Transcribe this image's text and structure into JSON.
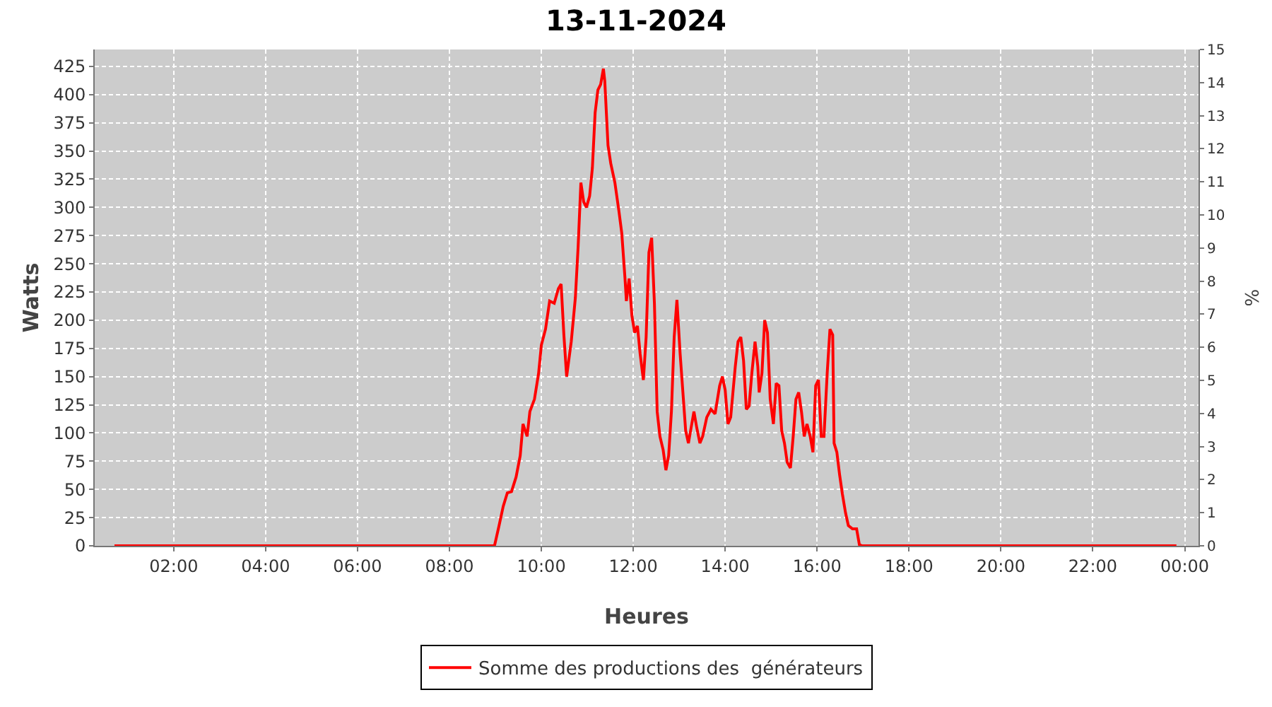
{
  "chart_data": {
    "type": "line",
    "title": "13-11-2024",
    "xlabel": "Heures",
    "ylabel": "Watts",
    "y2label": "%",
    "x": [
      0.71,
      8.98,
      9.08,
      9.17,
      9.26,
      9.35,
      9.45,
      9.54,
      9.6,
      9.69,
      9.75,
      9.85,
      9.94,
      10.0,
      10.09,
      10.18,
      10.28,
      10.37,
      10.43,
      10.49,
      10.55,
      10.65,
      10.74,
      10.8,
      10.86,
      10.92,
      10.98,
      11.05,
      11.11,
      11.17,
      11.23,
      11.29,
      11.35,
      11.38,
      11.45,
      11.51,
      11.6,
      11.69,
      11.75,
      11.82,
      11.85,
      11.91,
      11.97,
      12.03,
      12.09,
      12.15,
      12.22,
      12.28,
      12.34,
      12.4,
      12.46,
      12.52,
      12.58,
      12.65,
      12.71,
      12.77,
      12.83,
      12.89,
      12.95,
      13.02,
      13.08,
      13.14,
      13.2,
      13.26,
      13.32,
      13.38,
      13.45,
      13.51,
      13.6,
      13.69,
      13.78,
      13.88,
      13.94,
      14.0,
      14.06,
      14.12,
      14.22,
      14.28,
      14.34,
      14.4,
      14.46,
      14.52,
      14.58,
      14.65,
      14.71,
      14.74,
      14.8,
      14.86,
      14.92,
      14.98,
      15.05,
      15.11,
      15.17,
      15.23,
      15.29,
      15.35,
      15.42,
      15.48,
      15.54,
      15.6,
      15.66,
      15.72,
      15.78,
      15.85,
      15.91,
      15.97,
      16.03,
      16.09,
      16.15,
      16.22,
      16.28,
      16.34,
      16.37,
      16.43,
      16.49,
      16.55,
      16.62,
      16.68,
      16.77,
      16.86,
      16.92,
      16.98,
      23.82
    ],
    "series": [
      {
        "name": "Somme des productions des  générateurs",
        "color": "#ff0000",
        "values": [
          0,
          0,
          18,
          35,
          47,
          48,
          61,
          80,
          108,
          97,
          119,
          130,
          153,
          178,
          192,
          217,
          215,
          228,
          232,
          187,
          150,
          181,
          220,
          265,
          322,
          305,
          300,
          310,
          335,
          384,
          404,
          409,
          423,
          412,
          355,
          339,
          322,
          296,
          277,
          237,
          217,
          237,
          204,
          189,
          195,
          170,
          147,
          185,
          260,
          273,
          215,
          119,
          97,
          85,
          67,
          80,
          119,
          185,
          218,
          170,
          136,
          102,
          91,
          105,
          119,
          105,
          91,
          97,
          114,
          121,
          117,
          142,
          150,
          138,
          108,
          114,
          159,
          181,
          185,
          164,
          121,
          124,
          153,
          181,
          159,
          136,
          153,
          200,
          189,
          130,
          108,
          144,
          142,
          102,
          91,
          74,
          69,
          97,
          130,
          136,
          119,
          97,
          108,
          97,
          83,
          142,
          147,
          97,
          97,
          153,
          192,
          187,
          91,
          83,
          63,
          46,
          29,
          18,
          15,
          15,
          1,
          0,
          0
        ]
      }
    ],
    "xlim": [
      0.28,
      24.3
    ],
    "xticks": [
      {
        "value": 2,
        "label": "02:00"
      },
      {
        "value": 4,
        "label": "04:00"
      },
      {
        "value": 6,
        "label": "06:00"
      },
      {
        "value": 8,
        "label": "08:00"
      },
      {
        "value": 10,
        "label": "10:00"
      },
      {
        "value": 12,
        "label": "12:00"
      },
      {
        "value": 14,
        "label": "14:00"
      },
      {
        "value": 16,
        "label": "16:00"
      },
      {
        "value": 18,
        "label": "18:00"
      },
      {
        "value": 20,
        "label": "20:00"
      },
      {
        "value": 22,
        "label": "22:00"
      },
      {
        "value": 24,
        "label": "00:00"
      }
    ],
    "ylim": [
      0,
      440
    ],
    "yticks": [
      0,
      25,
      50,
      75,
      100,
      125,
      150,
      175,
      200,
      225,
      250,
      275,
      300,
      325,
      350,
      375,
      400,
      425
    ],
    "y2lim": [
      0,
      15
    ],
    "y2ticks": [
      0,
      1,
      2,
      3,
      4,
      5,
      6,
      7,
      8,
      9,
      10,
      11,
      12,
      13,
      14,
      15
    ],
    "grid": true,
    "legend": "bottom",
    "line_style": "solid"
  }
}
